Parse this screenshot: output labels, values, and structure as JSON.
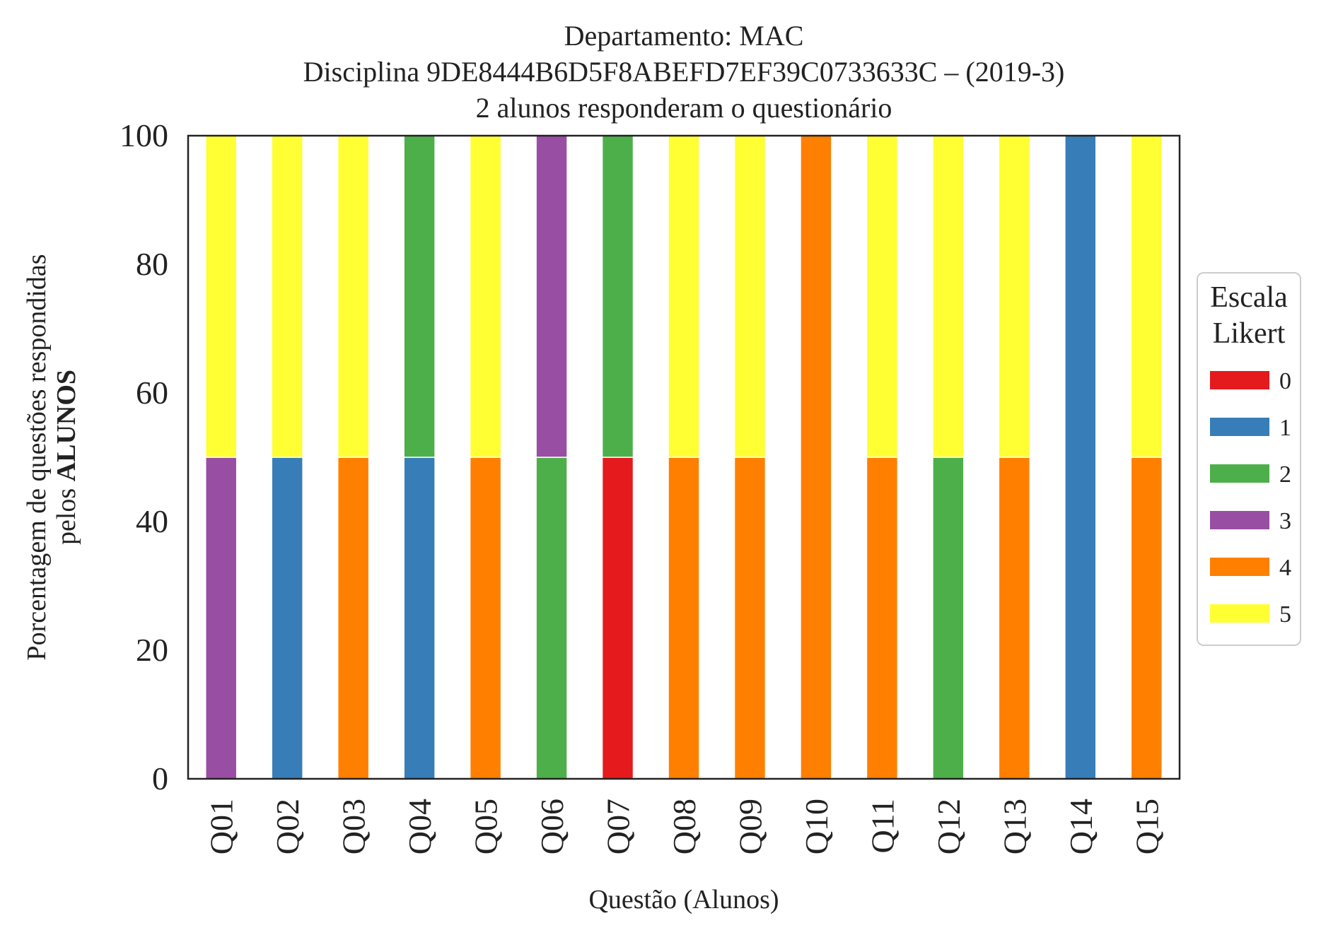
{
  "chart_data": {
    "type": "bar",
    "stacked": true,
    "title_lines": [
      "Departamento: MAC",
      "Disciplina 9DE8444B6D5F8ABEFD7EF39C0733633C – (2019-3)",
      "2 alunos responderam o questionário"
    ],
    "xlabel": "Questão (Alunos)",
    "ylabel_line1": "Porcentagem de questões respondidas",
    "ylabel_line2_prefix": "pelos ",
    "ylabel_line2_bold": "ALUNOS",
    "ylim": [
      0,
      100
    ],
    "yticks": [
      "0",
      "20",
      "40",
      "60",
      "80",
      "100"
    ],
    "grid": false,
    "legend": {
      "title_lines": [
        "Escala",
        "Likert"
      ],
      "placement": "right"
    },
    "categories": [
      "Q01",
      "Q02",
      "Q03",
      "Q04",
      "Q05",
      "Q06",
      "Q07",
      "Q08",
      "Q09",
      "Q10",
      "Q11",
      "Q12",
      "Q13",
      "Q14",
      "Q15"
    ],
    "series": [
      {
        "name": "0",
        "color": "#e41a1c",
        "values": [
          0,
          0,
          0,
          0,
          0,
          0,
          50,
          0,
          0,
          0,
          0,
          0,
          0,
          0,
          0
        ]
      },
      {
        "name": "1",
        "color": "#377eb8",
        "values": [
          0,
          50,
          0,
          50,
          0,
          0,
          0,
          0,
          0,
          0,
          0,
          0,
          0,
          100,
          0
        ]
      },
      {
        "name": "2",
        "color": "#4daf4a",
        "values": [
          0,
          0,
          0,
          50,
          0,
          50,
          50,
          0,
          0,
          0,
          0,
          50,
          0,
          0,
          0
        ]
      },
      {
        "name": "3",
        "color": "#984ea3",
        "values": [
          50,
          0,
          0,
          0,
          0,
          50,
          0,
          0,
          0,
          0,
          0,
          0,
          0,
          0,
          0
        ]
      },
      {
        "name": "4",
        "color": "#ff7f00",
        "values": [
          0,
          0,
          50,
          0,
          50,
          0,
          0,
          50,
          50,
          100,
          50,
          0,
          50,
          0,
          50
        ]
      },
      {
        "name": "5",
        "color": "#ffff33",
        "values": [
          50,
          50,
          50,
          0,
          50,
          0,
          0,
          50,
          50,
          0,
          50,
          50,
          50,
          0,
          50
        ]
      }
    ]
  }
}
